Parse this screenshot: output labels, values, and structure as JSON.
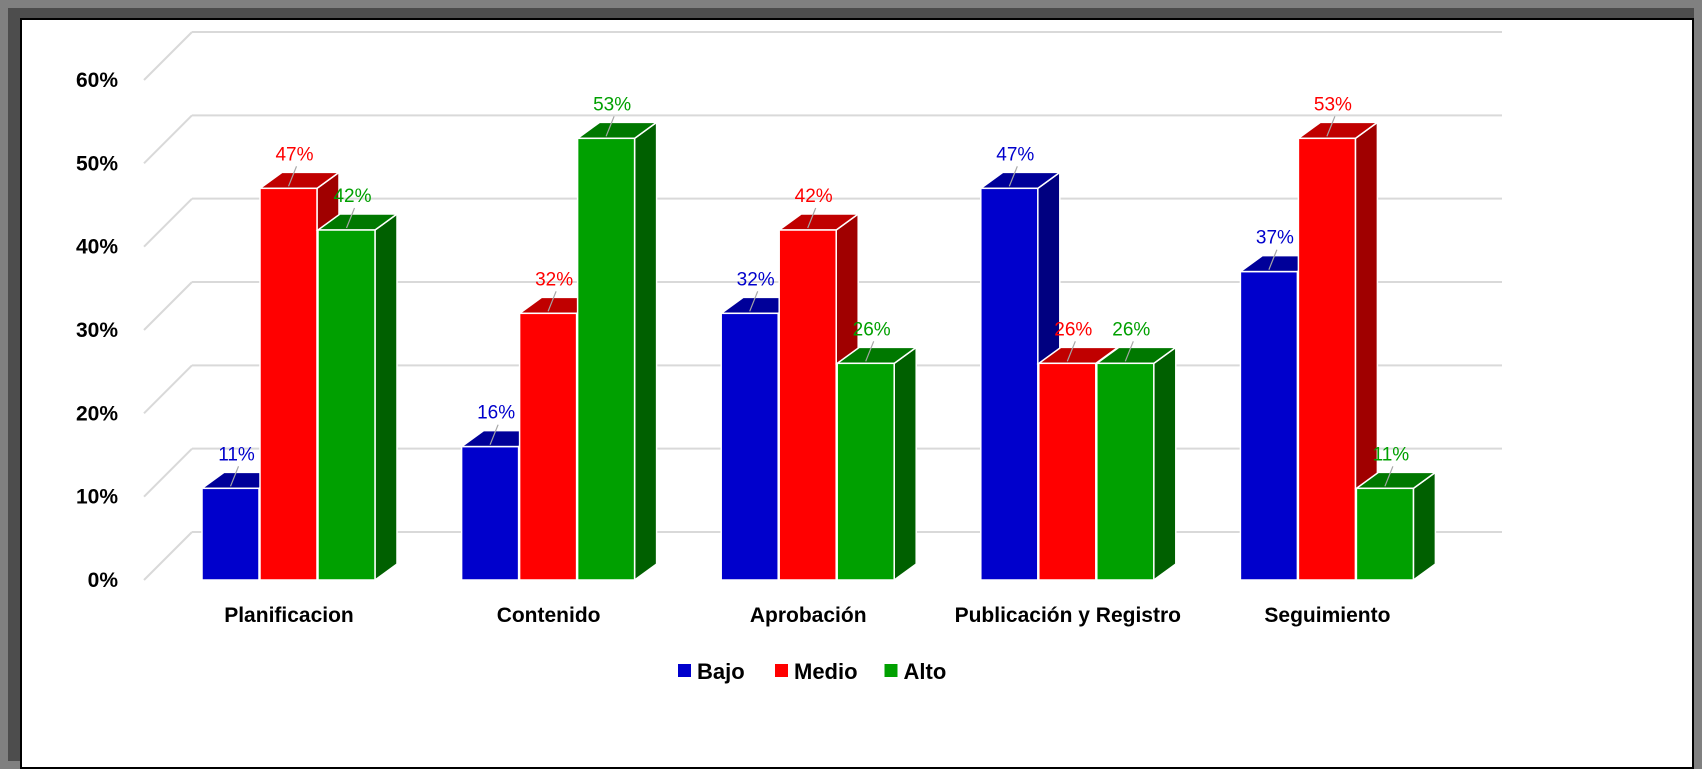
{
  "chart_data": {
    "type": "bar",
    "categories": [
      "Planificacion",
      "Contenido",
      "Aprobación",
      "Publicación y Registro",
      "Seguimiento"
    ],
    "series": [
      {
        "name": "Bajo",
        "values": [
          0.11,
          0.16,
          0.32,
          0.47,
          0.37
        ],
        "labels": [
          "11%",
          "16%",
          "32%",
          "47%",
          "37%"
        ],
        "color": "#0000CC",
        "side": "#000080",
        "top": "#000099"
      },
      {
        "name": "Medio",
        "values": [
          0.47,
          0.32,
          0.42,
          0.26,
          0.53
        ],
        "labels": [
          "47%",
          "32%",
          "42%",
          "26%",
          "53%"
        ],
        "color": "#FF0000",
        "side": "#A00000",
        "top": "#C00000"
      },
      {
        "name": "Alto",
        "values": [
          0.42,
          0.53,
          0.26,
          0.26,
          0.11
        ],
        "labels": [
          "42%",
          "53%",
          "26%",
          "26%",
          "11%"
        ],
        "color": "#00A000",
        "side": "#006000",
        "top": "#007800"
      }
    ],
    "label_colors": [
      "#0000CC",
      "#FF0000",
      "#00A000"
    ],
    "yticks": [
      "0%",
      "10%",
      "20%",
      "30%",
      "40%",
      "50%",
      "60%"
    ],
    "ylim": [
      0,
      0.6
    ],
    "grid": true,
    "legend_position": "bottom",
    "three_d": true
  }
}
